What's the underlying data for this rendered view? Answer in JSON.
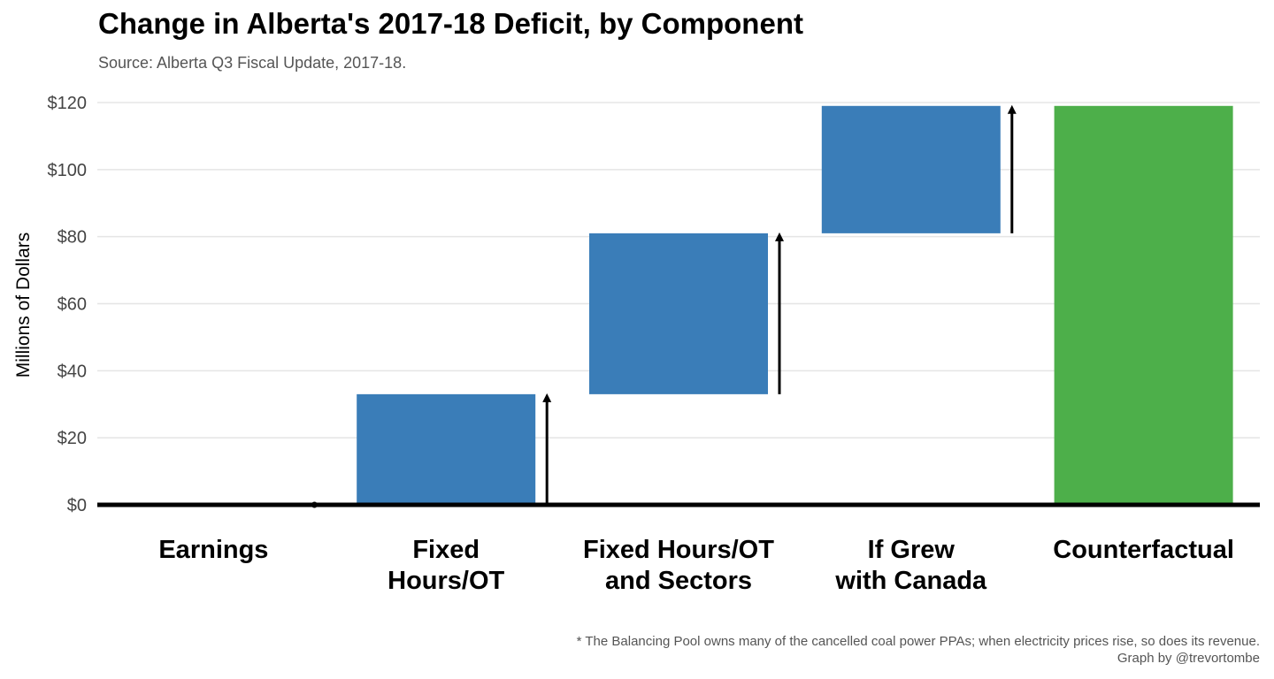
{
  "chart_data": {
    "type": "bar",
    "subtype": "waterfall",
    "title": "Change in Alberta's 2017-18 Deficit, by Component",
    "subtitle": "Source: Alberta Q3 Fiscal Update, 2017-18.",
    "ylabel": "Millions of Dollars",
    "xlabel": "",
    "ylim": [
      0,
      120
    ],
    "yticks": [
      0,
      20,
      40,
      60,
      80,
      100,
      120
    ],
    "ytick_labels": [
      "$0",
      "$20",
      "$40",
      "$60",
      "$80",
      "$100",
      "$120"
    ],
    "categories": [
      "Earnings",
      "Fixed Hours/OT",
      "Fixed Hours/OT and Sectors",
      "If Grew with Canada",
      "Counterfactual"
    ],
    "category_lines": [
      [
        "Earnings"
      ],
      [
        "Fixed",
        "Hours/OT"
      ],
      [
        "Fixed Hours/OT",
        "and Sectors"
      ],
      [
        "If Grew",
        "with Canada"
      ],
      [
        "Counterfactual"
      ]
    ],
    "bars": [
      {
        "start": 0,
        "end": 0,
        "kind": "step"
      },
      {
        "start": 0,
        "end": 33,
        "kind": "step"
      },
      {
        "start": 33,
        "end": 81,
        "kind": "step"
      },
      {
        "start": 81,
        "end": 119,
        "kind": "step"
      },
      {
        "start": 0,
        "end": 119,
        "kind": "total"
      }
    ],
    "colors": {
      "step": "#3a7db8",
      "total": "#4daf4a",
      "arrow": "#000000",
      "grid": "#e5e5e5",
      "baseline": "#000000"
    },
    "grid": true,
    "legend": "none"
  },
  "caption": {
    "note": "* The Balancing Pool owns many of the cancelled coal power PPAs; when electricity prices rise, so does its revenue.",
    "credit": "Graph by @trevortombe"
  }
}
